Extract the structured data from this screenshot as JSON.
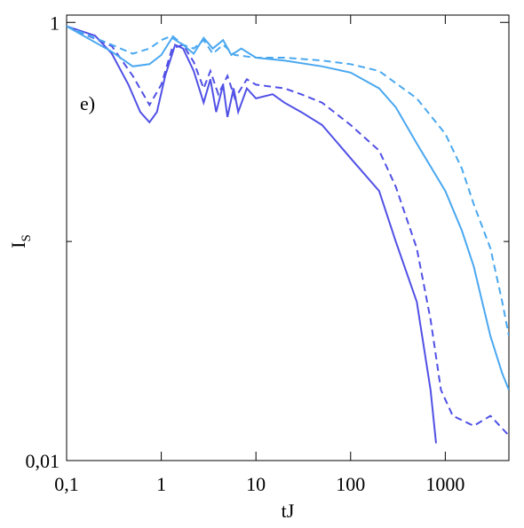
{
  "chart_data": {
    "type": "line",
    "xlabel": "tJ",
    "ylabel": "I",
    "ylabel_subscript": "S",
    "annotation": "e)",
    "xscale": "log",
    "yscale": "log",
    "xlim": [
      0.1,
      4700
    ],
    "ylim": [
      0.01,
      1.08
    ],
    "xticks": [
      {
        "value": 0.1,
        "label": "0,1"
      },
      1,
      10,
      100,
      1000
    ],
    "yticks": [
      {
        "value": 0.01,
        "label": "0,01"
      },
      1
    ],
    "yminorticks": [
      0.1
    ],
    "series": [
      {
        "color": "#5050e6",
        "dashed": false,
        "x": [
          0.1,
          0.2,
          0.3,
          0.45,
          0.6,
          0.75,
          0.9,
          1.1,
          1.4,
          1.7,
          2.2,
          2.8,
          3.3,
          3.8,
          4.5,
          5,
          5.8,
          6.5,
          8,
          10,
          15,
          20,
          30,
          50,
          100,
          200,
          300,
          500,
          700,
          800
        ],
        "values": [
          0.96,
          0.87,
          0.72,
          0.52,
          0.39,
          0.35,
          0.39,
          0.57,
          0.79,
          0.76,
          0.6,
          0.43,
          0.55,
          0.39,
          0.52,
          0.37,
          0.5,
          0.39,
          0.5,
          0.45,
          0.47,
          0.43,
          0.39,
          0.34,
          0.24,
          0.17,
          0.1,
          0.053,
          0.021,
          0.012
        ]
      },
      {
        "color": "#5050e6",
        "dashed": true,
        "x": [
          0.1,
          0.3,
          0.5,
          0.75,
          1,
          1.3,
          1.7,
          2.2,
          2.8,
          3.3,
          4,
          5,
          6,
          8,
          10,
          20,
          30,
          50,
          100,
          200,
          300,
          500,
          700,
          900,
          1200,
          2000,
          3000,
          4700
        ],
        "values": [
          0.96,
          0.78,
          0.57,
          0.42,
          0.52,
          0.76,
          0.79,
          0.66,
          0.5,
          0.6,
          0.47,
          0.57,
          0.45,
          0.55,
          0.52,
          0.5,
          0.47,
          0.43,
          0.34,
          0.26,
          0.178,
          0.093,
          0.044,
          0.021,
          0.016,
          0.0144,
          0.016,
          0.013
        ]
      },
      {
        "color": "#4aa8f0",
        "dashed": false,
        "x": [
          0.1,
          0.3,
          0.5,
          0.75,
          1,
          1.3,
          1.7,
          2.2,
          2.8,
          3.5,
          4.5,
          5.5,
          7,
          10,
          20,
          50,
          100,
          200,
          300,
          500,
          1000,
          1500,
          2000,
          3000,
          4000,
          4700
        ],
        "values": [
          0.96,
          0.735,
          0.63,
          0.645,
          0.71,
          0.85,
          0.79,
          0.72,
          0.85,
          0.76,
          0.83,
          0.71,
          0.76,
          0.69,
          0.67,
          0.63,
          0.59,
          0.5,
          0.41,
          0.28,
          0.17,
          0.112,
          0.077,
          0.037,
          0.025,
          0.021
        ]
      },
      {
        "color": "#4aa8f0",
        "dashed": true,
        "x": [
          0.1,
          0.3,
          0.5,
          0.75,
          1,
          1.3,
          1.7,
          2.2,
          2.8,
          3.5,
          4.5,
          6,
          10,
          20,
          50,
          100,
          200,
          500,
          1000,
          1500,
          2000,
          3000,
          4000,
          4700
        ],
        "values": [
          0.96,
          0.79,
          0.72,
          0.76,
          0.83,
          0.87,
          0.79,
          0.76,
          0.83,
          0.72,
          0.79,
          0.71,
          0.69,
          0.69,
          0.67,
          0.645,
          0.6,
          0.45,
          0.31,
          0.215,
          0.148,
          0.093,
          0.053,
          0.037
        ]
      }
    ]
  }
}
